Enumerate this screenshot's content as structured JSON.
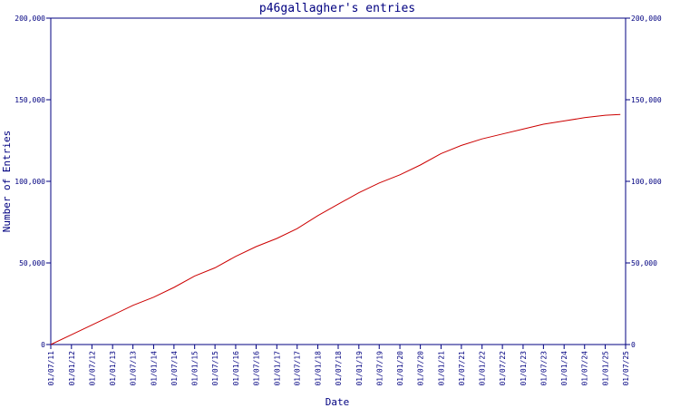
{
  "chart_data": {
    "type": "line",
    "title": "p46gallagher's entries",
    "xlabel": "Date",
    "ylabel": "Number of Entries",
    "ylim": [
      0,
      200000
    ],
    "y_ticks": [
      "0",
      "50,000",
      "100,000",
      "150,000",
      "200,000"
    ],
    "y_tick_values": [
      0,
      50000,
      100000,
      150000,
      200000
    ],
    "right_axis_duplicate": true,
    "x_ticks": [
      "01/07/11",
      "01/01/12",
      "01/07/12",
      "01/01/13",
      "01/07/13",
      "01/01/14",
      "01/07/14",
      "01/01/15",
      "01/07/15",
      "01/01/16",
      "01/07/16",
      "01/01/17",
      "01/07/17",
      "01/01/18",
      "01/07/18",
      "01/01/19",
      "01/07/19",
      "01/01/20",
      "01/07/20",
      "01/01/21",
      "01/07/21",
      "01/01/22",
      "01/07/22",
      "01/01/23",
      "01/07/23",
      "01/01/24",
      "01/07/24",
      "01/01/25",
      "01/07/25"
    ],
    "grid": false,
    "colors": {
      "axis": "#000080",
      "line": "#cc0000",
      "text": "#000080"
    },
    "series": [
      {
        "x": [
          "01/07/11",
          "01/01/12",
          "01/07/12",
          "01/01/13",
          "01/07/13",
          "01/01/14",
          "01/07/14",
          "01/01/15",
          "01/07/15",
          "01/01/16",
          "01/07/16",
          "01/01/17",
          "01/07/17",
          "01/01/18",
          "01/07/18",
          "01/01/19",
          "01/07/19",
          "01/01/20",
          "01/07/20",
          "01/01/21",
          "01/07/21",
          "01/01/22",
          "01/07/22",
          "01/01/23",
          "01/07/23",
          "01/01/24",
          "01/07/24",
          "01/01/25",
          "15/05/25"
        ],
        "values": [
          0,
          6000,
          12000,
          18000,
          24000,
          29000,
          35000,
          42000,
          47000,
          54000,
          60000,
          65000,
          71000,
          79000,
          86000,
          93000,
          99000,
          104000,
          110000,
          117000,
          122000,
          126000,
          129000,
          132000,
          135000,
          137000,
          139000,
          140500,
          141000
        ]
      }
    ]
  }
}
